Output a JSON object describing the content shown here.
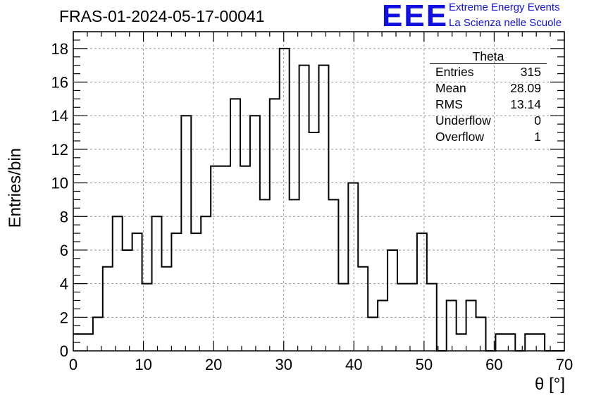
{
  "title": "FRAS-01-2024-05-17-00041",
  "logo": {
    "mark": "EEE",
    "line1": "Extreme Energy Events",
    "line2": "La Scienza nelle Scuole",
    "color": "#1010e0"
  },
  "stats": {
    "name": "Theta",
    "rows": [
      {
        "label": "Entries",
        "value": "315"
      },
      {
        "label": "Mean",
        "value": "28.09"
      },
      {
        "label": "RMS",
        "value": "13.14"
      },
      {
        "label": "Underflow",
        "value": "0"
      },
      {
        "label": "Overflow",
        "value": "1"
      }
    ]
  },
  "chart_data": {
    "type": "bar",
    "title": "FRAS-01-2024-05-17-00041",
    "xlabel": "θ [°]",
    "ylabel": "Entries/bin",
    "xlim": [
      0,
      70
    ],
    "ylim": [
      0,
      19
    ],
    "bin_width": 1.4,
    "grid": true,
    "x_ticks": [
      "0",
      "10",
      "20",
      "30",
      "40",
      "50",
      "60",
      "70"
    ],
    "y_ticks": [
      "0",
      "2",
      "4",
      "6",
      "8",
      "10",
      "12",
      "14",
      "16",
      "18"
    ],
    "values": [
      1,
      1,
      2,
      5,
      8,
      6,
      7,
      4,
      8,
      5,
      7,
      14,
      7,
      8,
      11,
      11,
      15,
      11,
      14,
      9,
      15,
      18,
      9,
      17,
      13,
      17,
      9,
      4,
      10,
      5,
      2,
      3,
      6,
      4,
      4,
      7,
      4,
      0,
      3,
      1,
      3,
      2,
      0,
      1,
      1,
      0,
      1,
      1,
      0,
      0
    ],
    "line_color": "#000000"
  }
}
